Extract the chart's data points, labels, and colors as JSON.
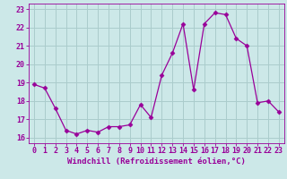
{
  "x": [
    0,
    1,
    2,
    3,
    4,
    5,
    6,
    7,
    8,
    9,
    10,
    11,
    12,
    13,
    14,
    15,
    16,
    17,
    18,
    19,
    20,
    21,
    22,
    23
  ],
  "y": [
    18.9,
    18.7,
    17.6,
    16.4,
    16.2,
    16.4,
    16.3,
    16.6,
    16.6,
    16.7,
    17.8,
    17.1,
    19.4,
    20.6,
    22.2,
    18.6,
    22.2,
    22.8,
    22.7,
    21.4,
    21.0,
    17.9,
    18.0,
    17.4
  ],
  "line_color": "#990099",
  "marker": "D",
  "marker_size": 2.5,
  "bg_color": "#cce8e8",
  "grid_color": "#aacccc",
  "xlabel": "Windchill (Refroidissement éolien,°C)",
  "xlim": [
    -0.5,
    23.5
  ],
  "ylim": [
    15.7,
    23.3
  ],
  "yticks": [
    16,
    17,
    18,
    19,
    20,
    21,
    22,
    23
  ],
  "xticks": [
    0,
    1,
    2,
    3,
    4,
    5,
    6,
    7,
    8,
    9,
    10,
    11,
    12,
    13,
    14,
    15,
    16,
    17,
    18,
    19,
    20,
    21,
    22,
    23
  ],
  "tick_color": "#990099",
  "label_color": "#990099",
  "xlabel_fontsize": 6.5,
  "tick_fontsize": 6.0
}
